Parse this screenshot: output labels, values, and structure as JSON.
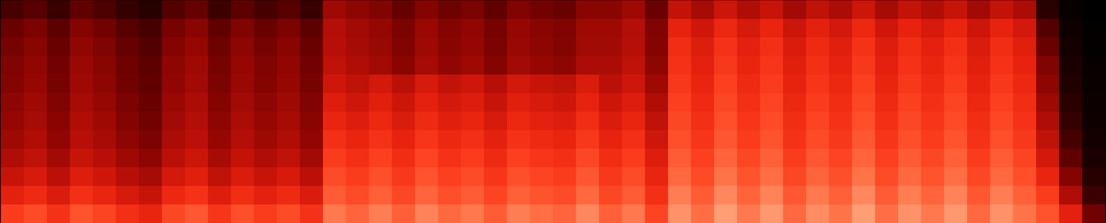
{
  "chart_data": {
    "type": "heatmap",
    "tick_labels": false,
    "zlim": [
      0,
      100
    ],
    "cells": [
      [
        22,
        26,
        19,
        28,
        24,
        18,
        14,
        25,
        29,
        20,
        27,
        22,
        26,
        19,
        42,
        38,
        35,
        29,
        36,
        31,
        34,
        28,
        35,
        32,
        30,
        37,
        37,
        42,
        30,
        51,
        44,
        53,
        46,
        52,
        43,
        50,
        45,
        53,
        44,
        51,
        46,
        52,
        43,
        51,
        45,
        15,
        3,
        0
      ],
      [
        30,
        34,
        27,
        36,
        32,
        26,
        22,
        33,
        37,
        28,
        35,
        30,
        34,
        27,
        47,
        43,
        40,
        34,
        41,
        36,
        39,
        33,
        40,
        37,
        35,
        42,
        42,
        47,
        35,
        61,
        54,
        63,
        56,
        62,
        53,
        60,
        55,
        63,
        54,
        61,
        56,
        62,
        53,
        61,
        55,
        25,
        6,
        1
      ],
      [
        33,
        37,
        30,
        39,
        35,
        29,
        25,
        36,
        40,
        31,
        38,
        33,
        37,
        30,
        48,
        44,
        41,
        35,
        42,
        37,
        40,
        34,
        41,
        38,
        36,
        43,
        43,
        48,
        36,
        65,
        58,
        67,
        60,
        66,
        57,
        64,
        59,
        67,
        58,
        65,
        60,
        66,
        57,
        65,
        59,
        30,
        8,
        2
      ],
      [
        35,
        39,
        32,
        41,
        37,
        31,
        27,
        38,
        42,
        33,
        40,
        35,
        39,
        32,
        50,
        46,
        43,
        37,
        44,
        39,
        42,
        36,
        43,
        40,
        38,
        45,
        45,
        50,
        38,
        67,
        60,
        69,
        62,
        68,
        59,
        66,
        61,
        69,
        60,
        67,
        62,
        68,
        59,
        67,
        61,
        35,
        10,
        3
      ],
      [
        36,
        40,
        33,
        42,
        38,
        32,
        28,
        39,
        43,
        34,
        41,
        36,
        40,
        33,
        54,
        50,
        55,
        49,
        56,
        51,
        54,
        48,
        55,
        52,
        50,
        57,
        49,
        54,
        42,
        69,
        62,
        71,
        64,
        70,
        61,
        68,
        63,
        71,
        62,
        69,
        64,
        70,
        61,
        69,
        63,
        38,
        12,
        4
      ],
      [
        38,
        42,
        35,
        44,
        40,
        34,
        30,
        41,
        45,
        36,
        43,
        38,
        42,
        35,
        58,
        54,
        59,
        53,
        60,
        55,
        58,
        52,
        59,
        56,
        54,
        61,
        53,
        58,
        46,
        71,
        64,
        73,
        66,
        72,
        63,
        70,
        65,
        73,
        64,
        71,
        66,
        72,
        63,
        71,
        65,
        42,
        15,
        5
      ],
      [
        40,
        44,
        37,
        46,
        42,
        36,
        32,
        43,
        47,
        38,
        45,
        40,
        44,
        37,
        62,
        58,
        63,
        57,
        64,
        59,
        62,
        56,
        63,
        60,
        58,
        65,
        57,
        62,
        50,
        73,
        66,
        75,
        68,
        74,
        65,
        72,
        67,
        75,
        66,
        73,
        68,
        74,
        65,
        73,
        67,
        46,
        18,
        6
      ],
      [
        42,
        46,
        39,
        48,
        44,
        38,
        34,
        45,
        49,
        40,
        47,
        42,
        46,
        39,
        66,
        62,
        67,
        61,
        68,
        63,
        66,
        60,
        67,
        64,
        62,
        69,
        61,
        66,
        54,
        75,
        68,
        77,
        70,
        76,
        67,
        74,
        69,
        77,
        68,
        75,
        70,
        76,
        67,
        75,
        69,
        50,
        22,
        8
      ],
      [
        46,
        50,
        43,
        52,
        48,
        42,
        38,
        49,
        53,
        44,
        51,
        46,
        50,
        43,
        70,
        66,
        71,
        65,
        72,
        67,
        70,
        64,
        71,
        68,
        66,
        73,
        65,
        70,
        58,
        78,
        71,
        80,
        73,
        79,
        70,
        77,
        72,
        80,
        71,
        78,
        73,
        79,
        70,
        78,
        72,
        55,
        28,
        10
      ],
      [
        52,
        56,
        49,
        58,
        54,
        48,
        44,
        55,
        59,
        50,
        57,
        52,
        56,
        49,
        74,
        70,
        75,
        69,
        76,
        71,
        74,
        68,
        75,
        72,
        70,
        77,
        69,
        74,
        62,
        81,
        74,
        83,
        76,
        82,
        73,
        80,
        75,
        83,
        74,
        81,
        76,
        82,
        73,
        81,
        75,
        62,
        36,
        14
      ],
      [
        60,
        64,
        57,
        66,
        62,
        56,
        52,
        63,
        67,
        58,
        65,
        60,
        64,
        57,
        78,
        74,
        79,
        73,
        80,
        75,
        78,
        72,
        79,
        76,
        74,
        81,
        73,
        78,
        66,
        85,
        78,
        87,
        80,
        86,
        77,
        84,
        79,
        87,
        78,
        85,
        80,
        86,
        77,
        85,
        79,
        70,
        46,
        20
      ],
      [
        70,
        74,
        67,
        76,
        72,
        66,
        62,
        73,
        77,
        68,
        75,
        70,
        74,
        67,
        84,
        80,
        85,
        79,
        86,
        81,
        84,
        78,
        85,
        82,
        80,
        87,
        79,
        84,
        72,
        89,
        82,
        91,
        84,
        90,
        81,
        88,
        83,
        91,
        82,
        89,
        84,
        90,
        81,
        89,
        83,
        76,
        60,
        32
      ]
    ]
  }
}
